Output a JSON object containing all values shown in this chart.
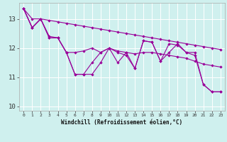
{
  "xlabel": "Windchill (Refroidissement éolien,°C)",
  "background_color": "#cff0ee",
  "grid_color": "#ffffff",
  "line_color": "#990099",
  "xlim": [
    -0.5,
    23.5
  ],
  "ylim": [
    9.85,
    13.55
  ],
  "yticks": [
    10,
    11,
    12,
    13
  ],
  "xticks": [
    0,
    1,
    2,
    3,
    4,
    5,
    6,
    7,
    8,
    9,
    10,
    11,
    12,
    13,
    14,
    15,
    16,
    17,
    18,
    19,
    20,
    21,
    22,
    23
  ],
  "series": [
    [
      13.35,
      12.7,
      13.0,
      12.35,
      12.35,
      11.85,
      11.1,
      11.1,
      11.1,
      11.5,
      12.0,
      11.5,
      11.85,
      11.3,
      12.25,
      12.2,
      11.55,
      11.85,
      12.15,
      11.85,
      11.75,
      10.75,
      10.5,
      10.5
    ],
    [
      13.35,
      12.7,
      13.0,
      12.35,
      12.35,
      11.85,
      11.1,
      11.1,
      11.5,
      11.85,
      12.0,
      11.85,
      11.75,
      11.3,
      12.25,
      12.2,
      11.55,
      12.15,
      12.1,
      11.85,
      11.85,
      10.75,
      10.5,
      10.5
    ],
    [
      13.35,
      12.7,
      13.0,
      12.4,
      12.35,
      11.85,
      11.85,
      11.9,
      12.0,
      11.85,
      12.0,
      11.9,
      11.85,
      11.8,
      11.85,
      11.85,
      11.8,
      11.75,
      11.7,
      11.65,
      11.55,
      11.45,
      11.4,
      11.35
    ],
    [
      13.35,
      13.0,
      13.0,
      12.95,
      12.9,
      12.85,
      12.8,
      12.75,
      12.7,
      12.65,
      12.6,
      12.55,
      12.5,
      12.45,
      12.4,
      12.35,
      12.3,
      12.25,
      12.2,
      12.15,
      12.1,
      12.05,
      12.0,
      11.95
    ]
  ]
}
